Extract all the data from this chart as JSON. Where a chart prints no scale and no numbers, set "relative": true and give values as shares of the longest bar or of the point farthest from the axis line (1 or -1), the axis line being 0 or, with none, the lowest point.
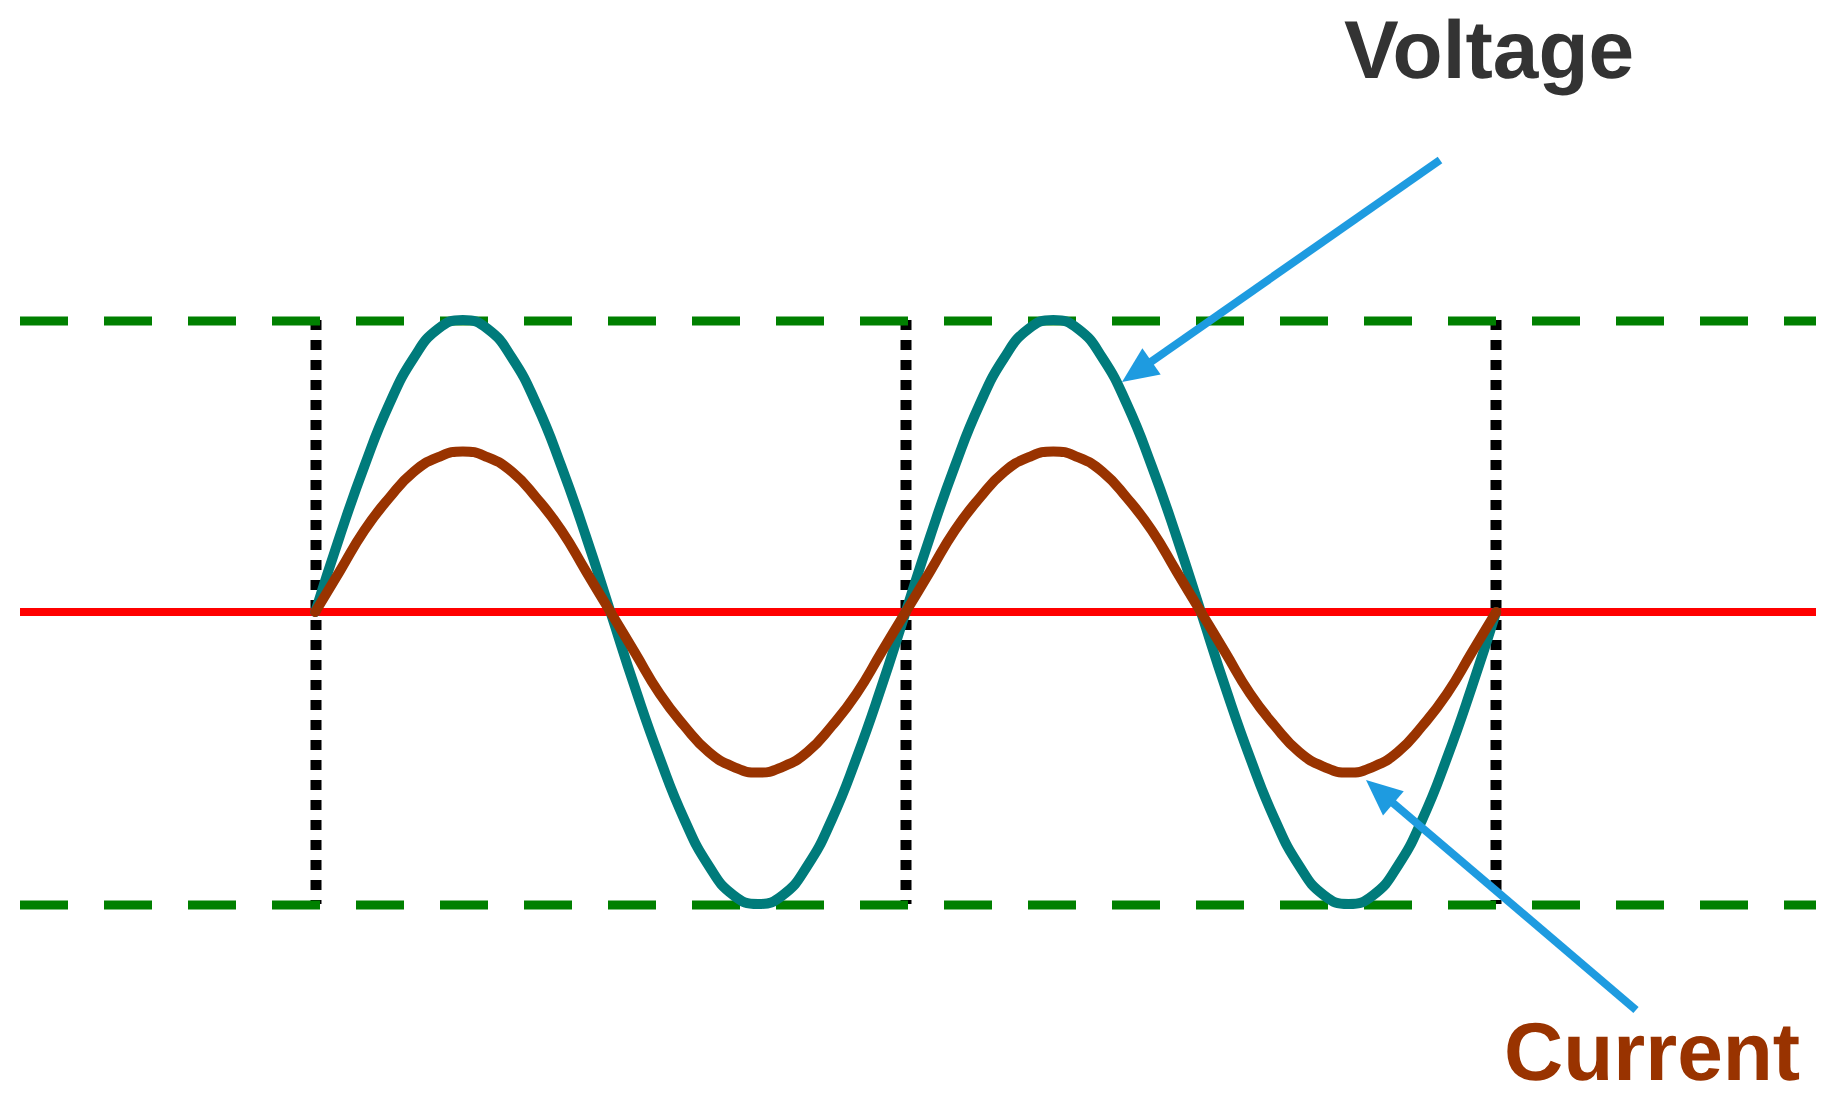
{
  "chart_data": {
    "type": "line",
    "relative": true,
    "marker": "none",
    "line_style": "solid",
    "grid": "x",
    "categories": [
      null,
      null,
      null,
      null,
      null,
      null,
      null,
      null,
      null,
      null,
      null,
      null,
      null,
      null,
      null,
      null,
      null,
      null,
      null,
      null,
      null,
      null,
      null,
      null,
      null,
      null,
      null,
      null,
      null,
      null,
      null,
      null,
      null,
      null,
      null,
      null,
      null,
      null,
      null,
      null,
      null,
      null,
      null,
      null,
      null,
      null,
      null,
      null,
      null,
      null,
      null,
      null,
      null,
      null,
      null,
      null,
      null,
      null,
      null,
      null,
      null,
      null,
      null,
      null,
      null,
      null,
      null,
      null,
      null,
      null,
      null,
      null,
      null,
      null
    ],
    "series": [
      {
        "name": "Voltage",
        "color": "#007b7b",
        "values": [
          null,
          null,
          null,
          null,
          null,
          null,
          null,
          null,
          null,
          null,
          null,
          null,
          0,
          0.26,
          0.5,
          0.71,
          0.87,
          0.97,
          1,
          0.97,
          0.87,
          0.71,
          0.5,
          0.26,
          0,
          -0.26,
          -0.5,
          -0.71,
          -0.87,
          -0.97,
          -1,
          -0.97,
          -0.87,
          -0.71,
          -0.5,
          -0.26,
          0,
          0.26,
          0.5,
          0.71,
          0.87,
          0.97,
          1,
          0.97,
          0.87,
          0.71,
          0.5,
          0.26,
          0,
          -0.26,
          -0.5,
          -0.71,
          -0.87,
          -0.97,
          -1,
          -0.97,
          -0.87,
          -0.71,
          -0.5,
          -0.26,
          0,
          null,
          null,
          null,
          null,
          null,
          null,
          null,
          null,
          null,
          null,
          null,
          null,
          null
        ]
      },
      {
        "name": "Current",
        "color": "#993300",
        "values": [
          null,
          null,
          null,
          null,
          null,
          null,
          null,
          null,
          null,
          null,
          null,
          null,
          0,
          0.14,
          0.28,
          0.39,
          0.48,
          0.53,
          0.55,
          0.53,
          0.48,
          0.39,
          0.28,
          0.14,
          0,
          -0.14,
          -0.28,
          -0.39,
          -0.48,
          -0.53,
          -0.55,
          -0.53,
          -0.48,
          -0.39,
          -0.28,
          -0.14,
          0,
          0.14,
          0.28,
          0.39,
          0.48,
          0.53,
          0.55,
          0.53,
          0.48,
          0.39,
          0.28,
          0.14,
          0,
          -0.14,
          -0.28,
          -0.39,
          -0.48,
          -0.53,
          -0.55,
          -0.53,
          -0.48,
          -0.39,
          -0.28,
          -0.14,
          0,
          null,
          null,
          null,
          null,
          null,
          null,
          null,
          null,
          null,
          null,
          null,
          null,
          null
        ]
      }
    ],
    "ref_lines": [
      {
        "axis": "y",
        "value": 1,
        "color": "#008000",
        "line_style": "dashed"
      },
      {
        "axis": "y",
        "value": -1,
        "color": "#008000",
        "line_style": "dashed"
      },
      {
        "axis": "y",
        "value": 0,
        "color": "#ff0000",
        "line_style": "solid"
      }
    ]
  }
}
